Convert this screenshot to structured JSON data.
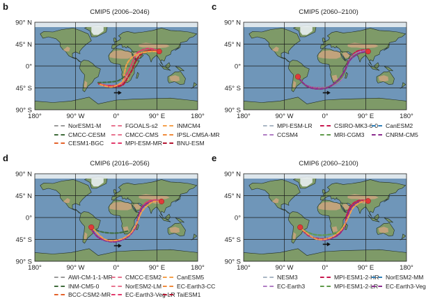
{
  "axes": {
    "lat_labels": [
      "90° N",
      "45° N",
      "0°",
      "45° S",
      "90° S"
    ],
    "lon_labels": [
      "180°",
      "90° W",
      "0°",
      "90° E",
      "180°"
    ]
  },
  "panels": [
    {
      "id": "b",
      "label": "b",
      "title": "CMIP5 (2006–2046)",
      "legend": [
        {
          "name": "NorESM1-M",
          "color": "#9a9a9a"
        },
        {
          "name": "FGOALS-s2",
          "color": "#e8738f"
        },
        {
          "name": "INMCM4",
          "color": "#f5a04a"
        },
        {
          "name": "CMCC-CESM",
          "color": "#3e6b3a"
        },
        {
          "name": "CMCC-CMS",
          "color": "#e8738f"
        },
        {
          "name": "IPSL-CM5A-MR",
          "color": "#f08a3a"
        },
        {
          "name": "CESM1-BGC",
          "color": "#e4622a"
        },
        {
          "name": "MPI-ESM-MR",
          "color": "#e23a6c"
        },
        {
          "name": "BNU-ESM",
          "color": "#b3132f"
        }
      ]
    },
    {
      "id": "c",
      "label": "c",
      "title": "CMIP5 (2060–2100)",
      "legend": [
        {
          "name": "MPI-ESM-LR",
          "color": "#a9b6c4"
        },
        {
          "name": "CSIRO-MK3-6-0",
          "color": "#c7174d"
        },
        {
          "name": "CanESM2",
          "color": "#2f7fb8"
        },
        {
          "name": "CCSM4",
          "color": "#b07cc4"
        },
        {
          "name": "MRI-CGM3",
          "color": "#5f9a4a"
        },
        {
          "name": "CNRM-CM5",
          "color": "#8a2a8e"
        }
      ]
    },
    {
      "id": "d",
      "label": "d",
      "title": "CMIP6 (2016–2056)",
      "legend": [
        {
          "name": "AWI-CM-1-1-MR",
          "color": "#9a9a9a"
        },
        {
          "name": "CMCC-ESM2",
          "color": "#e8738f"
        },
        {
          "name": "CanESM5",
          "color": "#f5a04a"
        },
        {
          "name": "INM-CM5-0",
          "color": "#3e6b3a"
        },
        {
          "name": "NorESM2-LM",
          "color": "#e8738f"
        },
        {
          "name": "EC-Earth3-CC",
          "color": "#f08a3a"
        },
        {
          "name": "BCC-CSM2-MR",
          "color": "#e4622a"
        },
        {
          "name": "EC-Earth3-Veg-LR",
          "color": "#e23a6c"
        },
        {
          "name": "TaiESM1",
          "color": "#b3132f"
        }
      ]
    },
    {
      "id": "e",
      "label": "e",
      "title": "CMIP6 (2060–2100)",
      "legend": [
        {
          "name": "NESM3",
          "color": "#a9b6c4"
        },
        {
          "name": "MPI-ESM1-2-HR",
          "color": "#c7174d"
        },
        {
          "name": "NorESM2-MM",
          "color": "#2f7fb8"
        },
        {
          "name": "EC-Earth3",
          "color": "#b07cc4"
        },
        {
          "name": "MPI-ESM1-2-LR",
          "color": "#5f9a4a"
        },
        {
          "name": "EC-Earth3-Veg",
          "color": "#8a2a8e"
        }
      ]
    }
  ],
  "chart_data": {
    "type": "map",
    "projection": "equirectangular",
    "lon_range": [
      -180,
      180
    ],
    "lat_range": [
      -90,
      90
    ],
    "grid": true,
    "map_colors": {
      "ocean": "#6f96b9",
      "land": "#7e9a68",
      "desert": "#c9a47e",
      "ice": "#e9eef2"
    },
    "panels": [
      {
        "id": "b",
        "series": [
          {
            "name": "track-west",
            "color": "#e23a6c",
            "points": [
              [
                -40,
                -35
              ],
              [
                -20,
                -40
              ],
              [
                10,
                -38
              ],
              [
                20,
                -22
              ],
              [
                30,
                -5
              ],
              [
                38,
                12
              ],
              [
                48,
                28
              ],
              [
                70,
                36
              ],
              [
                88,
                33
              ],
              [
                95,
                30
              ]
            ]
          },
          {
            "name": "track-mid",
            "color": "#b3132f",
            "points": [
              [
                -38,
                -37
              ],
              [
                -18,
                -42
              ],
              [
                12,
                -40
              ],
              [
                25,
                -24
              ],
              [
                35,
                -8
              ],
              [
                42,
                8
              ],
              [
                55,
                25
              ],
              [
                72,
                32
              ],
              [
                95,
                30
              ]
            ]
          },
          {
            "name": "track-east",
            "color": "#f5a04a",
            "points": [
              [
                -36,
                -38
              ],
              [
                -10,
                -43
              ],
              [
                14,
                -32
              ],
              [
                18,
                -15
              ],
              [
                24,
                5
              ],
              [
                38,
                20
              ],
              [
                60,
                28
              ],
              [
                80,
                30
              ],
              [
                95,
                30
              ]
            ]
          },
          {
            "name": "track-green",
            "color": "#3e6b3a",
            "points": [
              [
                -40,
                -34
              ],
              [
                -15,
                -33
              ],
              [
                5,
                -30
              ],
              [
                20,
                -20
              ]
            ]
          }
        ],
        "markers": [
          {
            "lon": 95,
            "lat": 30,
            "color": "#e03a3a"
          }
        ],
        "arrow": {
          "from": [
            -5,
            -55
          ],
          "to": [
            12,
            -55
          ]
        }
      },
      {
        "id": "c",
        "series": [
          {
            "name": "track-main",
            "color": "#c7174d",
            "points": [
              [
                -60,
                -20
              ],
              [
                -45,
                -38
              ],
              [
                -20,
                -45
              ],
              [
                10,
                -42
              ],
              [
                35,
                -28
              ],
              [
                45,
                -5
              ],
              [
                55,
                15
              ],
              [
                70,
                30
              ],
              [
                90,
                33
              ],
              [
                95,
                30
              ]
            ]
          },
          {
            "name": "track-b",
            "color": "#b07cc4",
            "points": [
              [
                -60,
                -22
              ],
              [
                -42,
                -40
              ],
              [
                -15,
                -46
              ],
              [
                15,
                -40
              ],
              [
                38,
                -25
              ],
              [
                48,
                0
              ],
              [
                60,
                20
              ],
              [
                80,
                30
              ],
              [
                95,
                30
              ]
            ]
          },
          {
            "name": "track-c",
            "color": "#5f9a4a",
            "points": [
              [
                -60,
                -24
              ],
              [
                -40,
                -42
              ],
              [
                -10,
                -47
              ],
              [
                18,
                -38
              ],
              [
                40,
                -20
              ],
              [
                50,
                5
              ],
              [
                65,
                22
              ],
              [
                85,
                28
              ],
              [
                95,
                30
              ]
            ]
          },
          {
            "name": "track-d",
            "color": "#8a2a8e",
            "points": [
              [
                -58,
                -26
              ],
              [
                -35,
                -44
              ],
              [
                0,
                -46
              ],
              [
                25,
                -32
              ],
              [
                42,
                -12
              ],
              [
                55,
                12
              ],
              [
                75,
                26
              ],
              [
                95,
                30
              ]
            ]
          }
        ],
        "markers": [
          {
            "lon": 95,
            "lat": 30,
            "color": "#e03a3a"
          },
          {
            "lon": -60,
            "lat": -22,
            "color": "#e03a3a"
          }
        ],
        "arrow": {
          "from": [
            -5,
            -55
          ],
          "to": [
            12,
            -55
          ]
        }
      },
      {
        "id": "d",
        "series": [
          {
            "name": "track-main",
            "color": "#e23a6c",
            "points": [
              [
                -60,
                -18
              ],
              [
                -40,
                -40
              ],
              [
                -10,
                -48
              ],
              [
                20,
                -42
              ],
              [
                40,
                -25
              ],
              [
                48,
                -5
              ],
              [
                55,
                18
              ],
              [
                70,
                33
              ],
              [
                90,
                36
              ],
              [
                100,
                33
              ]
            ]
          },
          {
            "name": "track-b",
            "color": "#8a2a8e",
            "points": [
              [
                -58,
                -20
              ],
              [
                -38,
                -42
              ],
              [
                -5,
                -50
              ],
              [
                25,
                -40
              ],
              [
                42,
                -20
              ],
              [
                50,
                5
              ],
              [
                62,
                25
              ],
              [
                85,
                34
              ],
              [
                100,
                33
              ]
            ]
          },
          {
            "name": "track-green",
            "color": "#3e6b3a",
            "points": [
              [
                -55,
                -22
              ],
              [
                -30,
                -30
              ],
              [
                0,
                -32
              ],
              [
                25,
                -28
              ]
            ]
          },
          {
            "name": "track-c",
            "color": "#f5a04a",
            "points": [
              [
                -50,
                -24
              ],
              [
                -25,
                -45
              ],
              [
                5,
                -46
              ],
              [
                30,
                -34
              ],
              [
                45,
                -12
              ],
              [
                58,
                14
              ],
              [
                80,
                32
              ],
              [
                100,
                33
              ]
            ]
          }
        ],
        "markers": [
          {
            "lon": 100,
            "lat": 33,
            "color": "#e03a3a"
          },
          {
            "lon": -55,
            "lat": -20,
            "color": "#e03a3a"
          }
        ],
        "arrow": {
          "from": [
            -5,
            -58
          ],
          "to": [
            12,
            -58
          ]
        }
      },
      {
        "id": "e",
        "series": [
          {
            "name": "track-main",
            "color": "#c7174d",
            "points": [
              [
                -55,
                -20
              ],
              [
                -35,
                -38
              ],
              [
                -5,
                -44
              ],
              [
                25,
                -38
              ],
              [
                42,
                -20
              ],
              [
                48,
                5
              ],
              [
                58,
                25
              ],
              [
                75,
                35
              ],
              [
                95,
                34
              ]
            ]
          },
          {
            "name": "track-b",
            "color": "#8a2a8e",
            "points": [
              [
                -52,
                -22
              ],
              [
                -30,
                -40
              ],
              [
                0,
                -46
              ],
              [
                30,
                -34
              ],
              [
                45,
                -12
              ],
              [
                55,
                15
              ],
              [
                70,
                30
              ],
              [
                95,
                34
              ]
            ]
          },
          {
            "name": "track-green",
            "color": "#5f9a4a",
            "points": [
              [
                -55,
                -22
              ],
              [
                -28,
                -34
              ],
              [
                0,
                -36
              ],
              [
                28,
                -30
              ],
              [
                42,
                -15
              ]
            ]
          },
          {
            "name": "track-c",
            "color": "#f5a04a",
            "points": [
              [
                -50,
                -25
              ],
              [
                -20,
                -44
              ],
              [
                10,
                -42
              ],
              [
                35,
                -26
              ],
              [
                50,
                -2
              ],
              [
                62,
                20
              ],
              [
                80,
                32
              ],
              [
                95,
                34
              ]
            ]
          }
        ],
        "markers": [
          {
            "lon": 95,
            "lat": 34,
            "color": "#e03a3a"
          },
          {
            "lon": -55,
            "lat": -20,
            "color": "#e03a3a"
          }
        ],
        "arrow": {
          "from": [
            -5,
            -55
          ],
          "to": [
            12,
            -55
          ]
        }
      }
    ]
  }
}
